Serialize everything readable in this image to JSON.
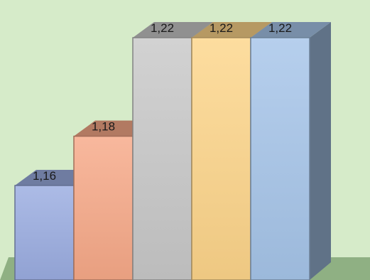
{
  "chart_data": {
    "type": "bar",
    "style": "3d-columns",
    "values": [
      1.16,
      1.18,
      1.22,
      1.22,
      1.22
    ],
    "labels": [
      "1,16",
      "1,18",
      "1,22",
      "1,22",
      "1,22"
    ],
    "colors": [
      "#9aace0",
      "#f7a988",
      "#c8c8c8",
      "#fdd58a",
      "#a6c5e9"
    ],
    "background_color": "#d6ebc9",
    "floor_color": "#8fb083",
    "legend": "none",
    "grid": false
  }
}
